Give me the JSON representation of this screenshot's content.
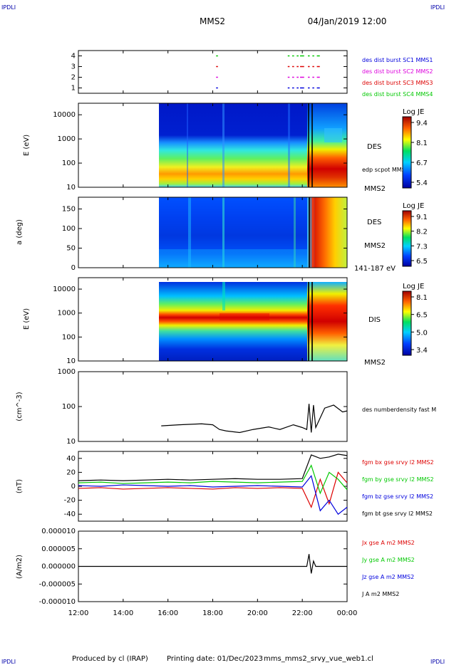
{
  "header": {
    "corner_left": "IPDLI",
    "corner_right": "IPDLI",
    "spacecraft": "MMS2",
    "datetime": "04/Jan/2019 12:00"
  },
  "footer": {
    "corner_left": "IPDLI",
    "corner_right": "IPDLI",
    "produced_by": "Produced by cl (IRAP)",
    "printing_date": "Printing date: 01/Dec/2023",
    "filename": "mms_mms2_srvy_vue_web1.cl"
  },
  "time_axis": {
    "ticks": [
      "12:00",
      "14:00",
      "16:00",
      "18:00",
      "20:00",
      "22:00",
      "00:00"
    ],
    "tick_hours": [
      12,
      14,
      16,
      18,
      20,
      22,
      24
    ]
  },
  "colors": {
    "red": "#dd0000",
    "green": "#00c800",
    "blue": "#0000dd",
    "magenta": "#dd00dd",
    "black": "#000000",
    "navy": "#0000aa"
  },
  "chart_data": [
    {
      "type": "scatter",
      "id": "burst",
      "y_ticks": [
        "4",
        "3",
        "2",
        "1"
      ],
      "ylim": [
        0.5,
        4.5
      ],
      "legend": [
        {
          "label": "des dist burst SC1 MMS1",
          "color": "#0000dd"
        },
        {
          "label": "des dist burst SC2 MMS2",
          "color": "#dd00dd"
        },
        {
          "label": "des dist burst SC3 MMS3",
          "color": "#dd0000"
        },
        {
          "label": "des dist burst SC4 MMS4",
          "color": "#00c800"
        }
      ],
      "intervals_hours": [
        [
          18.15,
          18.2
        ],
        [
          21.35,
          21.4
        ],
        [
          21.55,
          21.6
        ],
        [
          21.75,
          21.8
        ],
        [
          21.9,
          22.05
        ],
        [
          22.25,
          22.3
        ],
        [
          22.45,
          22.5
        ],
        [
          22.65,
          22.75
        ]
      ]
    },
    {
      "type": "heatmap",
      "id": "des-energy",
      "ylabel": "E (eV)",
      "y_ticks": [
        "10000",
        "1000",
        "100",
        "10"
      ],
      "y_log": true,
      "ylim": [
        10,
        30000
      ],
      "label": "DES",
      "annotation": "edp scpot MMS2",
      "corner_label": "MMS2",
      "colorbar": {
        "title": "Log JE",
        "ticks": [
          "9.4",
          "8.1",
          "6.7",
          "5.4"
        ]
      },
      "data_start_hour": 15.55
    },
    {
      "type": "heatmap",
      "id": "des-pitch",
      "ylabel": "a (deg)",
      "y_ticks": [
        "150",
        "100",
        "50",
        "0"
      ],
      "ylim": [
        0,
        180
      ],
      "label": "DES",
      "sub_label": "MMS2",
      "corner_label": "141-187 eV",
      "colorbar": {
        "title": "Log JE",
        "ticks": [
          "9.1",
          "8.2",
          "7.3",
          "6.5"
        ]
      },
      "data_start_hour": 15.55
    },
    {
      "type": "heatmap",
      "id": "dis-energy",
      "ylabel": "E (eV)",
      "y_ticks": [
        "10000",
        "1000",
        "100",
        "10"
      ],
      "y_log": true,
      "ylim": [
        10,
        30000
      ],
      "label": "DIS",
      "corner_label": "MMS2",
      "colorbar": {
        "title": "Log JE",
        "ticks": [
          "8.1",
          "6.5",
          "5.0",
          "3.4"
        ]
      },
      "data_start_hour": 15.55
    },
    {
      "type": "line",
      "id": "density",
      "ylabel": "(cm^-3)",
      "y_ticks": [
        "1000",
        "100",
        "10"
      ],
      "y_log": true,
      "ylim": [
        10,
        1000
      ],
      "series": [
        {
          "name": "des numberdensity fast M",
          "color": "#000000",
          "x": [
            15.7,
            16.5,
            17.5,
            18.0,
            18.3,
            18.6,
            19.2,
            19.8,
            20.5,
            21.0,
            21.6,
            22.0,
            22.2,
            22.3,
            22.4,
            22.5,
            22.6,
            23.0,
            23.4,
            23.8,
            24.0
          ],
          "y": [
            28,
            30,
            32,
            30,
            22,
            20,
            18,
            22,
            26,
            22,
            30,
            25,
            22,
            120,
            18,
            110,
            25,
            90,
            110,
            70,
            75
          ]
        }
      ]
    },
    {
      "type": "line",
      "id": "magnetic-field",
      "ylabel": "(nT)",
      "y_ticks": [
        "40",
        "20",
        "0",
        "-20",
        "-40"
      ],
      "ylim": [
        -50,
        50
      ],
      "series": [
        {
          "name": "fgm bx gse srvy l2 MMS2",
          "color": "#dd0000",
          "x": [
            12,
            13,
            14,
            15,
            16,
            17,
            18,
            19,
            20,
            21,
            22,
            22.4,
            22.8,
            23.2,
            23.6,
            24
          ],
          "y": [
            -3,
            -2,
            -4,
            -3,
            -2,
            -3,
            -4,
            -2,
            -3,
            -2,
            -3,
            -30,
            10,
            -25,
            20,
            5
          ]
        },
        {
          "name": "fgm by gse srvy l2 MMS2",
          "color": "#00c800",
          "x": [
            12,
            13,
            14,
            15,
            16,
            17,
            18,
            19,
            20,
            21,
            22,
            22.4,
            22.8,
            23.2,
            23.6,
            24
          ],
          "y": [
            5,
            6,
            4,
            5,
            6,
            5,
            7,
            6,
            5,
            6,
            7,
            30,
            -10,
            20,
            10,
            -5
          ]
        },
        {
          "name": "fgm bz gse srvy l2 MMS2",
          "color": "#0000dd",
          "x": [
            12,
            13,
            14,
            15,
            16,
            17,
            18,
            19,
            20,
            21,
            22,
            22.4,
            22.8,
            23.2,
            23.6,
            24
          ],
          "y": [
            1,
            0,
            2,
            1,
            0,
            1,
            -1,
            0,
            1,
            0,
            -1,
            15,
            -35,
            -20,
            -40,
            -30
          ]
        },
        {
          "name": "fgm bt gse srvy l2 MMS2",
          "color": "#000000",
          "x": [
            12,
            13,
            14,
            15,
            16,
            17,
            18,
            19,
            20,
            21,
            22,
            22.4,
            22.8,
            23.2,
            23.6,
            24
          ],
          "y": [
            8,
            9,
            8,
            9,
            10,
            9,
            10,
            11,
            10,
            10,
            11,
            45,
            40,
            42,
            46,
            44
          ]
        }
      ]
    },
    {
      "type": "line",
      "id": "current-density",
      "ylabel": "(A/m2)",
      "y_ticks": [
        "0.000010",
        "0.000005",
        "0.000000",
        "-0.000005",
        "-0.000010"
      ],
      "ylim": [
        -1e-05,
        1e-05
      ],
      "series": [
        {
          "name": "Jx gse A m2 MMS2",
          "color": "#dd0000"
        },
        {
          "name": "Jy gse A m2 MMS2",
          "color": "#00c800"
        },
        {
          "name": "Jz gse A m2 MMS2",
          "color": "#0000dd"
        },
        {
          "name": "J A m2 MMS2",
          "color": "#000000",
          "x": [
            12,
            16,
            20,
            22.2,
            22.3,
            22.4,
            22.5,
            22.6,
            23,
            24
          ],
          "y": [
            0,
            0,
            0,
            0,
            3.5e-06,
            -2e-06,
            1.5e-06,
            0,
            0,
            0
          ]
        }
      ]
    }
  ]
}
